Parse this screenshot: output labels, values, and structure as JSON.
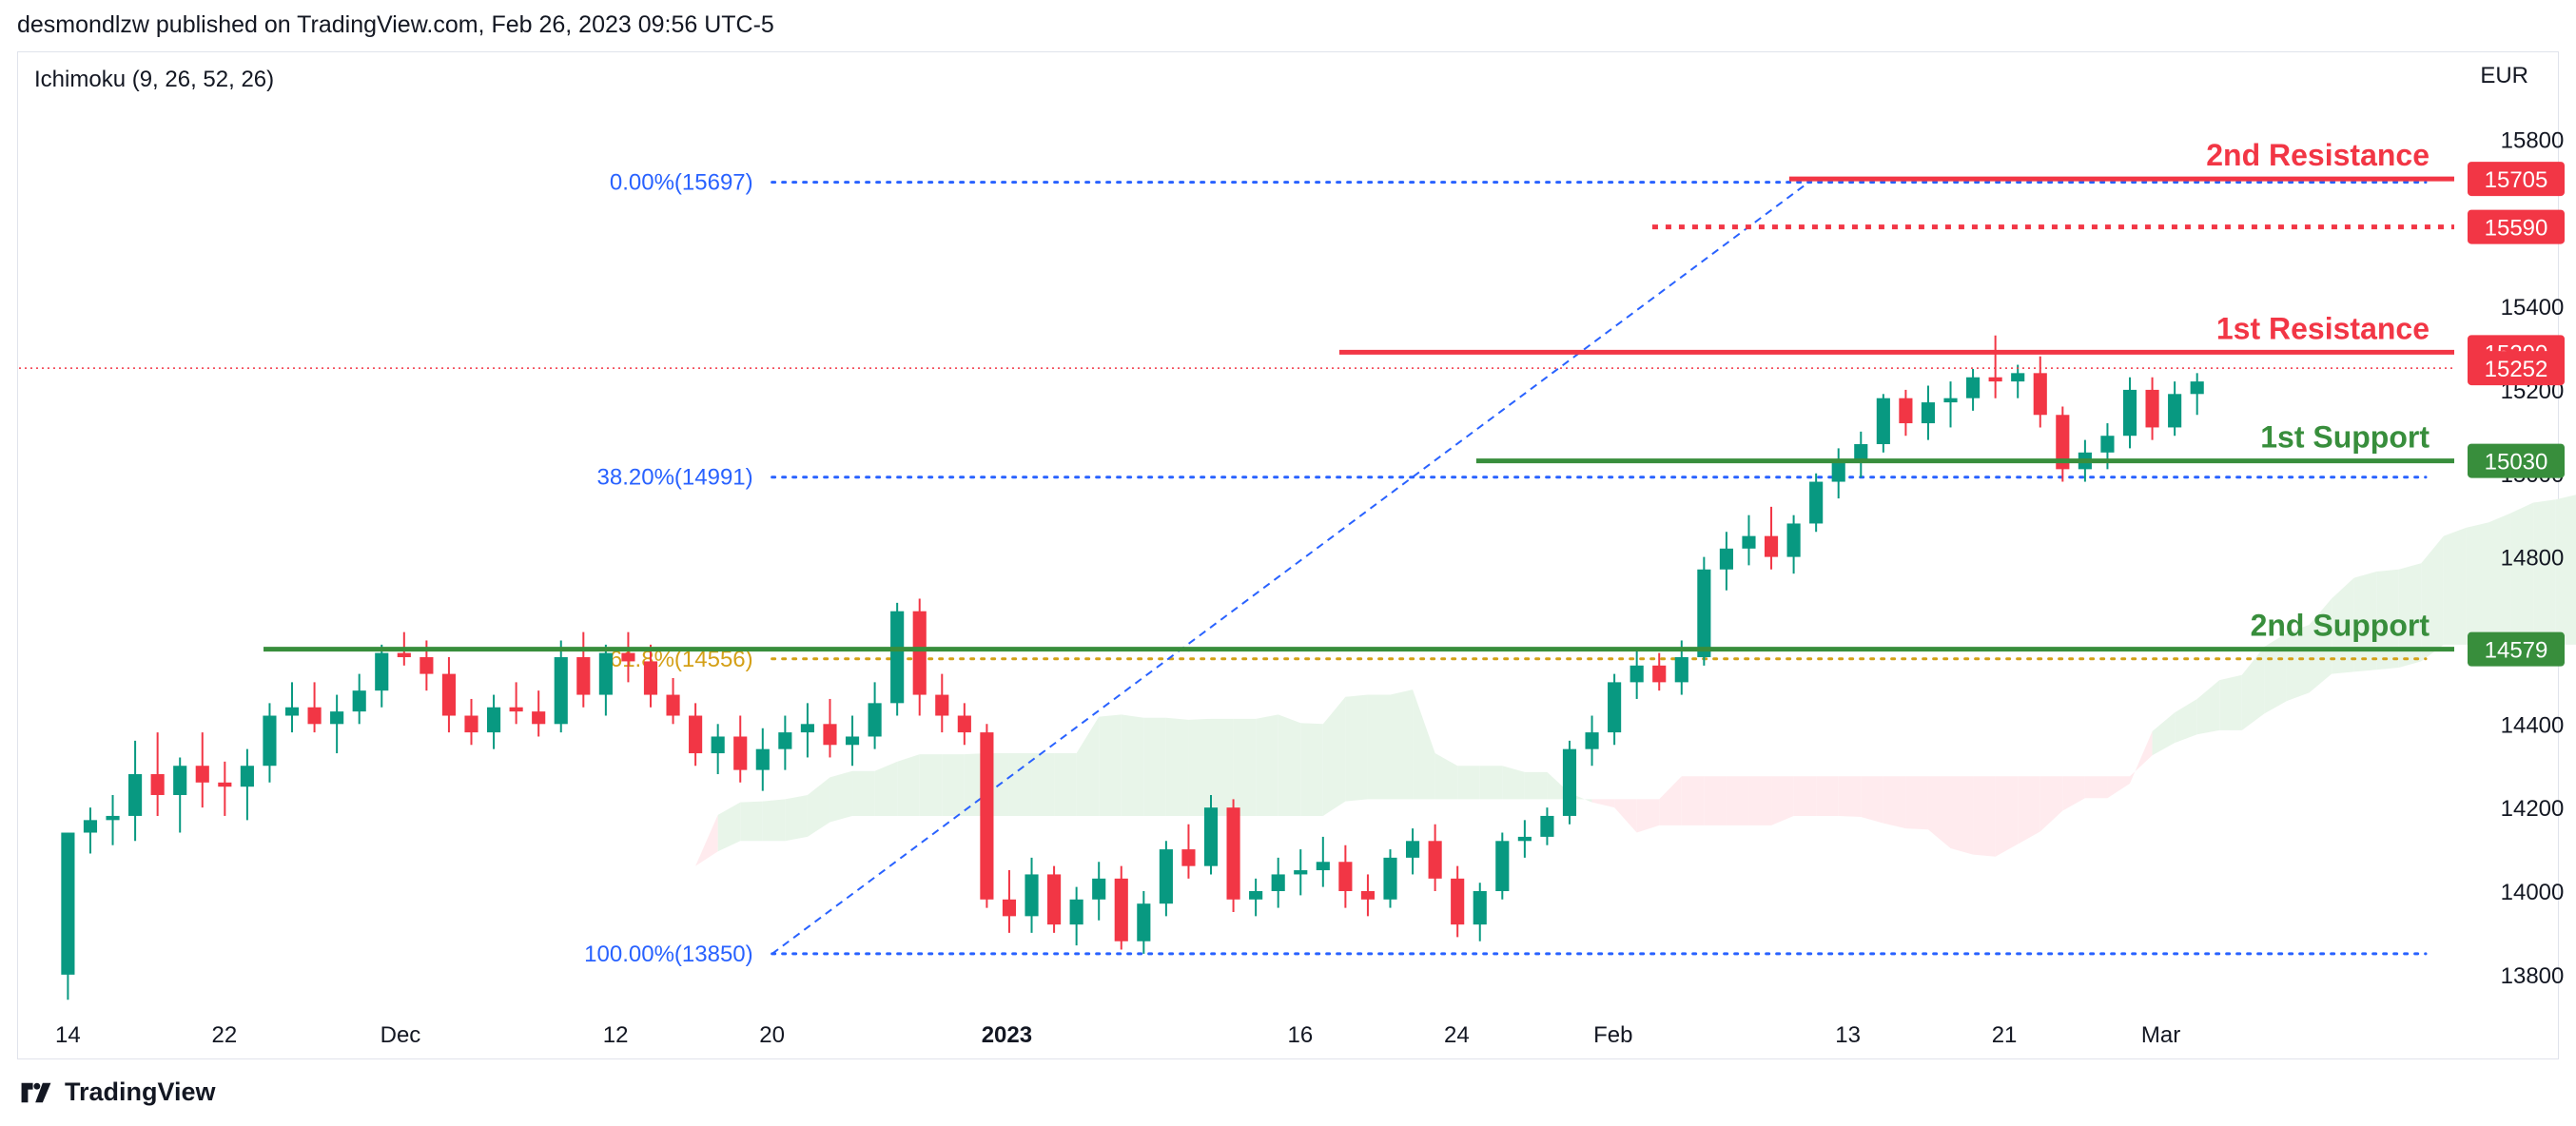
{
  "header": {
    "publisher": "desmondlzw published on TradingView.com, Feb 26, 2023 09:56 UTC-5"
  },
  "indicator": {
    "label": "Ichimoku (9, 26, 52, 26)"
  },
  "axis": {
    "currency": "EUR"
  },
  "footer": {
    "brand": "TradingView"
  },
  "colors": {
    "bull": "#089981",
    "bear": "#f23645",
    "fib": "#2962ff",
    "fib_gold": "#d4a017",
    "support": "#388e3c",
    "resistance": "#f23645",
    "cloud_bull": "#e8f5e9",
    "cloud_bear": "#ffebee"
  },
  "chart_data": {
    "type": "candlestick",
    "ylim": [
      13720,
      15860
    ],
    "y_ticks": [
      13800,
      14000,
      14200,
      14400,
      14600,
      14800,
      15000,
      15200,
      15400,
      15600,
      15800
    ],
    "x_ticks": [
      {
        "label": "14",
        "day": 0,
        "bold": false
      },
      {
        "label": "22",
        "day": 8,
        "bold": false
      },
      {
        "label": "Dec",
        "day": 17,
        "bold": false
      },
      {
        "label": "12",
        "day": 28,
        "bold": false
      },
      {
        "label": "20",
        "day": 36,
        "bold": false
      },
      {
        "label": "2023",
        "day": 48,
        "bold": true
      },
      {
        "label": "16",
        "day": 63,
        "bold": false
      },
      {
        "label": "24",
        "day": 71,
        "bold": false
      },
      {
        "label": "Feb",
        "day": 79,
        "bold": false
      },
      {
        "label": "13",
        "day": 91,
        "bold": false
      },
      {
        "label": "21",
        "day": 99,
        "bold": false
      },
      {
        "label": "Mar",
        "day": 107,
        "bold": false
      }
    ],
    "x_range": [
      -2.5,
      122
    ],
    "fib_levels": [
      {
        "label": "0.00%(15697)",
        "value": 15697,
        "style": "blue"
      },
      {
        "label": "38.20%(14991)",
        "value": 14991,
        "style": "blue"
      },
      {
        "label": "61.8%(14556)",
        "value": 14556,
        "style": "gold"
      },
      {
        "label": "100.00%(13850)",
        "value": 13850,
        "style": "blue"
      }
    ],
    "levels": [
      {
        "name": "2nd Resistance",
        "value": 15705,
        "price_label": "15705",
        "kind": "resistance",
        "from_day": 88
      },
      {
        "name": "",
        "value": 15590,
        "price_label": "15590",
        "kind": "resistance-dotted",
        "from_day": 81
      },
      {
        "name": "1st Resistance",
        "value": 15290,
        "price_label": "15290",
        "kind": "resistance",
        "from_day": 65
      },
      {
        "name": "1st Support",
        "value": 15030,
        "price_label": "15030",
        "kind": "support",
        "from_day": 72
      },
      {
        "name": "2nd Support",
        "value": 14579,
        "price_label": "14579",
        "kind": "support",
        "from_day": 10
      }
    ],
    "current_price": {
      "value": 15252,
      "label": "15252"
    },
    "ohlc": [
      [
        13800,
        14140,
        13740,
        14140
      ],
      [
        14140,
        14200,
        14090,
        14170
      ],
      [
        14170,
        14230,
        14110,
        14180
      ],
      [
        14180,
        14360,
        14120,
        14280
      ],
      [
        14280,
        14380,
        14180,
        14230
      ],
      [
        14230,
        14320,
        14140,
        14300
      ],
      [
        14300,
        14380,
        14200,
        14260
      ],
      [
        14260,
        14310,
        14180,
        14250
      ],
      [
        14250,
        14340,
        14170,
        14300
      ],
      [
        14300,
        14450,
        14260,
        14420
      ],
      [
        14420,
        14500,
        14380,
        14440
      ],
      [
        14440,
        14500,
        14380,
        14400
      ],
      [
        14400,
        14470,
        14330,
        14430
      ],
      [
        14430,
        14520,
        14400,
        14480
      ],
      [
        14480,
        14590,
        14440,
        14570
      ],
      [
        14570,
        14620,
        14540,
        14560
      ],
      [
        14560,
        14600,
        14480,
        14520
      ],
      [
        14520,
        14560,
        14380,
        14420
      ],
      [
        14420,
        14460,
        14350,
        14380
      ],
      [
        14380,
        14470,
        14340,
        14440
      ],
      [
        14440,
        14500,
        14400,
        14430
      ],
      [
        14430,
        14480,
        14370,
        14400
      ],
      [
        14400,
        14600,
        14380,
        14560
      ],
      [
        14560,
        14620,
        14440,
        14470
      ],
      [
        14470,
        14590,
        14420,
        14570
      ],
      [
        14570,
        14620,
        14500,
        14550
      ],
      [
        14550,
        14590,
        14440,
        14470
      ],
      [
        14470,
        14510,
        14400,
        14420
      ],
      [
        14420,
        14450,
        14300,
        14330
      ],
      [
        14330,
        14400,
        14280,
        14370
      ],
      [
        14370,
        14420,
        14260,
        14290
      ],
      [
        14290,
        14390,
        14240,
        14340
      ],
      [
        14340,
        14420,
        14290,
        14380
      ],
      [
        14380,
        14450,
        14320,
        14400
      ],
      [
        14400,
        14460,
        14320,
        14350
      ],
      [
        14350,
        14420,
        14300,
        14370
      ],
      [
        14370,
        14500,
        14340,
        14450
      ],
      [
        14450,
        14690,
        14420,
        14670
      ],
      [
        14670,
        14700,
        14420,
        14470
      ],
      [
        14470,
        14520,
        14380,
        14420
      ],
      [
        14420,
        14450,
        14350,
        14380
      ],
      [
        14380,
        14400,
        13960,
        13980
      ],
      [
        13980,
        14050,
        13900,
        13940
      ],
      [
        13940,
        14080,
        13900,
        14040
      ],
      [
        14040,
        14060,
        13900,
        13920
      ],
      [
        13920,
        14010,
        13870,
        13980
      ],
      [
        13980,
        14070,
        13930,
        14030
      ],
      [
        14030,
        14060,
        13860,
        13880
      ],
      [
        13880,
        14000,
        13850,
        13970
      ],
      [
        13970,
        14120,
        13940,
        14100
      ],
      [
        14100,
        14160,
        14030,
        14060
      ],
      [
        14060,
        14230,
        14040,
        14200
      ],
      [
        14200,
        14220,
        13950,
        13980
      ],
      [
        13980,
        14030,
        13940,
        14000
      ],
      [
        14000,
        14080,
        13960,
        14040
      ],
      [
        14040,
        14100,
        13990,
        14050
      ],
      [
        14050,
        14130,
        14010,
        14070
      ],
      [
        14070,
        14110,
        13960,
        14000
      ],
      [
        14000,
        14040,
        13940,
        13980
      ],
      [
        13980,
        14100,
        13960,
        14080
      ],
      [
        14080,
        14150,
        14040,
        14120
      ],
      [
        14120,
        14160,
        14000,
        14030
      ],
      [
        14030,
        14060,
        13890,
        13920
      ],
      [
        13920,
        14020,
        13880,
        14000
      ],
      [
        14000,
        14140,
        13980,
        14120
      ],
      [
        14120,
        14170,
        14080,
        14130
      ],
      [
        14130,
        14200,
        14110,
        14180
      ],
      [
        14180,
        14360,
        14160,
        14340
      ],
      [
        14340,
        14420,
        14300,
        14380
      ],
      [
        14380,
        14520,
        14350,
        14500
      ],
      [
        14500,
        14580,
        14460,
        14540
      ],
      [
        14540,
        14570,
        14480,
        14500
      ],
      [
        14500,
        14600,
        14470,
        14560
      ],
      [
        14560,
        14800,
        14540,
        14770
      ],
      [
        14770,
        14860,
        14720,
        14820
      ],
      [
        14820,
        14900,
        14780,
        14850
      ],
      [
        14850,
        14920,
        14770,
        14800
      ],
      [
        14800,
        14900,
        14760,
        14880
      ],
      [
        14880,
        15000,
        14860,
        14980
      ],
      [
        14980,
        15060,
        14940,
        15030
      ],
      [
        15030,
        15100,
        14990,
        15070
      ],
      [
        15070,
        15190,
        15050,
        15180
      ],
      [
        15180,
        15200,
        15090,
        15120
      ],
      [
        15120,
        15210,
        15080,
        15170
      ],
      [
        15170,
        15220,
        15110,
        15180
      ],
      [
        15180,
        15250,
        15150,
        15230
      ],
      [
        15230,
        15330,
        15180,
        15220
      ],
      [
        15220,
        15260,
        15180,
        15240
      ],
      [
        15240,
        15280,
        15110,
        15140
      ],
      [
        15140,
        15160,
        14980,
        15010
      ],
      [
        15010,
        15080,
        14980,
        15050
      ],
      [
        15050,
        15120,
        15010,
        15090
      ],
      [
        15090,
        15230,
        15060,
        15200
      ],
      [
        15200,
        15230,
        15080,
        15110
      ],
      [
        15110,
        15220,
        15090,
        15190
      ],
      [
        15190,
        15240,
        15140,
        15220
      ]
    ],
    "fib_trend_line": {
      "from": {
        "day": 36,
        "value": 13850
      },
      "to": {
        "day": 89,
        "value": 15697
      }
    }
  }
}
